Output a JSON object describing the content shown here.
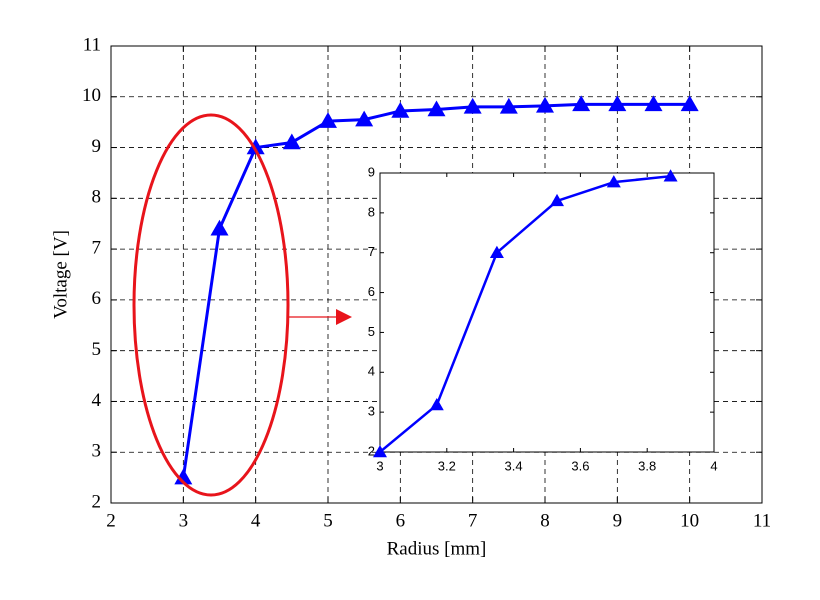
{
  "chart_data": [
    {
      "type": "line",
      "xlabel": "Radius [mm]",
      "ylabel": "Voltage [V]",
      "x": [
        3,
        3.5,
        4,
        4.5,
        5,
        5.5,
        6,
        6.5,
        7,
        7.5,
        8,
        8.5,
        9,
        9.5,
        10
      ],
      "values": [
        2.5,
        7.4,
        9.0,
        9.1,
        9.52,
        9.55,
        9.72,
        9.75,
        9.8,
        9.8,
        9.82,
        9.85,
        9.85,
        9.85,
        9.85
      ],
      "color": "#0000ff",
      "marker": "triangle",
      "xlim": [
        2,
        11
      ],
      "ylim": [
        2,
        11
      ],
      "xticks": [
        2,
        3,
        4,
        5,
        6,
        7,
        8,
        9,
        10,
        11
      ],
      "yticks": [
        2,
        3,
        4,
        5,
        6,
        7,
        8,
        9,
        10,
        11
      ],
      "grid": true
    },
    {
      "type": "line",
      "x": [
        3,
        3.17,
        3.35,
        3.53,
        3.7,
        3.87
      ],
      "values": [
        2.0,
        3.18,
        7.0,
        8.3,
        8.77,
        8.92
      ],
      "color": "#0000ff",
      "marker": "triangle",
      "xlim": [
        3,
        4
      ],
      "ylim": [
        2,
        9
      ],
      "xticks": [
        3,
        3.2,
        3.4,
        3.6,
        3.8,
        4
      ],
      "yticks": [
        2,
        3,
        4,
        5,
        6,
        7,
        8,
        9
      ],
      "grid": false
    }
  ]
}
